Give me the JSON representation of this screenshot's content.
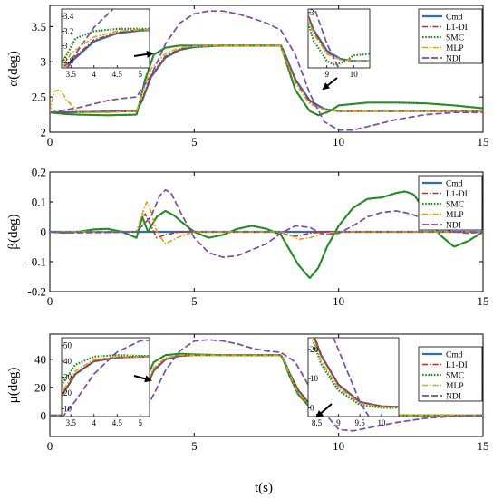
{
  "colors": {
    "Cmd": "#2a6fb5",
    "L1-DI": "#cc2a1a",
    "SMC": "#228b22",
    "MLP": "#d9a41a",
    "NDI": "#7d4aa8"
  },
  "chart_data": [
    {
      "type": "line",
      "ylabel": "α(deg)",
      "xlim": [
        0,
        15
      ],
      "ylim": [
        2,
        3.8
      ],
      "xticks": [
        0,
        5,
        10,
        15
      ],
      "yticks": [
        2,
        2.5,
        3,
        3.5
      ],
      "legend": [
        "Cmd",
        "L1-DI",
        "SMC",
        "MLP",
        "NDI"
      ],
      "legend_position": "top-right",
      "series": [
        {
          "name": "Cmd",
          "x": [
            0,
            3,
            3.2,
            3.5,
            4,
            4.5,
            5,
            6,
            7,
            8,
            8.1,
            8.5,
            9,
            9.5,
            10,
            11,
            15
          ],
          "y": [
            2.28,
            2.3,
            2.45,
            2.78,
            3.06,
            3.17,
            3.21,
            3.23,
            3.23,
            3.23,
            3.15,
            2.75,
            2.45,
            2.33,
            2.3,
            2.3,
            2.3
          ]
        },
        {
          "name": "L1-DI",
          "x": [
            0,
            3,
            3.2,
            3.5,
            4,
            4.5,
            5,
            6,
            7,
            8,
            8.1,
            8.5,
            9,
            9.5,
            10,
            11,
            15
          ],
          "y": [
            2.28,
            2.3,
            2.47,
            2.8,
            3.08,
            3.18,
            3.22,
            3.23,
            3.23,
            3.23,
            3.14,
            2.73,
            2.43,
            2.32,
            2.3,
            2.3,
            2.3
          ]
        },
        {
          "name": "SMC",
          "x": [
            0,
            0.5,
            1,
            2,
            3,
            3.1,
            3.3,
            3.6,
            4,
            4.5,
            5,
            6,
            8,
            8.1,
            8.5,
            9,
            9.3,
            9.7,
            10,
            11,
            12,
            13,
            14,
            15
          ],
          "y": [
            2.28,
            2.26,
            2.25,
            2.24,
            2.25,
            2.4,
            2.75,
            3.1,
            3.2,
            3.23,
            3.23,
            3.23,
            3.23,
            3.1,
            2.6,
            2.3,
            2.24,
            2.3,
            2.38,
            2.42,
            2.42,
            2.41,
            2.38,
            2.34
          ]
        },
        {
          "name": "MLP",
          "x": [
            0,
            0.15,
            0.35,
            0.6,
            1,
            2,
            3,
            3.2,
            3.5,
            4,
            4.5,
            5,
            6,
            8,
            8.1,
            8.5,
            9,
            9.5,
            10,
            11,
            15
          ],
          "y": [
            2.28,
            2.58,
            2.6,
            2.45,
            2.28,
            2.28,
            2.3,
            2.55,
            2.9,
            3.12,
            3.2,
            3.22,
            3.23,
            3.23,
            3.1,
            2.7,
            2.4,
            2.32,
            2.3,
            2.3,
            2.3
          ]
        },
        {
          "name": "NDI",
          "x": [
            0,
            1,
            2,
            2.5,
            3,
            3.5,
            4,
            4.5,
            5,
            5.5,
            6,
            6.5,
            7,
            7.5,
            8,
            8.5,
            9,
            9.5,
            10,
            10.5,
            11,
            12,
            13,
            14,
            15
          ],
          "y": [
            2.28,
            2.35,
            2.45,
            2.48,
            2.5,
            2.8,
            3.25,
            3.55,
            3.68,
            3.72,
            3.72,
            3.68,
            3.62,
            3.55,
            3.45,
            3.1,
            2.55,
            2.15,
            2.03,
            2.03,
            2.08,
            2.18,
            2.25,
            2.28,
            2.28
          ]
        }
      ],
      "insets": [
        {
          "xlim": [
            3.3,
            5.2
          ],
          "ylim": [
            2.7,
            3.5
          ],
          "xticks": [
            3.5,
            4,
            4.5,
            5
          ],
          "yticks": [
            2.8,
            3,
            3.2,
            3.4
          ],
          "xtick_labels": [
            "3.5",
            "4",
            "4.5",
            "5"
          ],
          "ytick_labels": [
            "2.8",
            "3",
            "3.2",
            "3.4"
          ]
        },
        {
          "xlim": [
            8.3,
            10.6
          ],
          "ylim": [
            2.2,
            3.05
          ],
          "xticks": [
            9,
            10
          ],
          "yticks": [
            3
          ],
          "xtick_labels": [
            "9",
            "10"
          ],
          "ytick_labels": [
            "3"
          ]
        }
      ]
    },
    {
      "type": "line",
      "ylabel": "β(deg)",
      "xlim": [
        0,
        15
      ],
      "ylim": [
        -0.2,
        0.2
      ],
      "xticks": [
        0,
        5,
        10,
        15
      ],
      "yticks": [
        -0.2,
        -0.1,
        0,
        0.1,
        0.2
      ],
      "legend": [
        "Cmd",
        "L1-DI",
        "SMC",
        "MLP",
        "NDI"
      ],
      "legend_position": "top-right",
      "series": [
        {
          "name": "Cmd",
          "x": [
            0,
            15
          ],
          "y": [
            0,
            0
          ]
        },
        {
          "name": "L1-DI",
          "x": [
            0,
            3,
            3.15,
            3.3,
            3.5,
            3.7,
            4,
            4.5,
            5,
            6,
            7,
            8,
            8.2,
            8.5,
            9,
            9.5,
            10,
            11,
            15
          ],
          "y": [
            0,
            0,
            0.04,
            0.06,
            0.02,
            -0.02,
            -0.01,
            0,
            0,
            0,
            0,
            0,
            -0.01,
            -0.015,
            -0.005,
            0,
            0,
            0,
            0
          ]
        },
        {
          "name": "SMC",
          "x": [
            0,
            0.5,
            1,
            1.5,
            2,
            2.5,
            3,
            3.2,
            3.4,
            3.7,
            4,
            4.3,
            4.6,
            5,
            5.5,
            6,
            6.5,
            7,
            7.5,
            8,
            8.3,
            8.6,
            9,
            9.3,
            9.6,
            10,
            10.5,
            11,
            11.5,
            12,
            12.3,
            12.6,
            13,
            13.5,
            14,
            14.5,
            15
          ],
          "y": [
            0,
            -0.003,
            0,
            0.008,
            0.01,
            0,
            -0.02,
            0.05,
            0.0,
            0.05,
            0.07,
            0.055,
            0.03,
            0.0,
            -0.02,
            -0.01,
            0.01,
            0.02,
            0.01,
            -0.01,
            -0.06,
            -0.11,
            -0.155,
            -0.12,
            -0.05,
            0.02,
            0.08,
            0.11,
            0.115,
            0.13,
            0.135,
            0.125,
            0.07,
            -0.01,
            -0.05,
            -0.03,
            0
          ]
        },
        {
          "name": "MLP",
          "x": [
            0,
            3,
            3.2,
            3.35,
            3.5,
            3.7,
            4,
            4.4,
            5,
            6,
            7,
            8,
            8.3,
            8.6,
            9,
            9.5,
            10,
            11,
            15
          ],
          "y": [
            0,
            0,
            0.06,
            0.1,
            0.07,
            0.0,
            -0.04,
            -0.02,
            0,
            0,
            0,
            0,
            -0.01,
            -0.025,
            -0.02,
            -0.005,
            0,
            0,
            0
          ]
        },
        {
          "name": "NDI",
          "x": [
            0,
            0.5,
            1,
            2,
            3,
            3.5,
            3.8,
            4,
            4.2,
            4.5,
            5,
            5.5,
            6,
            6.5,
            7,
            7.5,
            8,
            8.5,
            9,
            9.5,
            10,
            10.5,
            11,
            11.5,
            12,
            12.5,
            13,
            13.5,
            14,
            14.5,
            15
          ],
          "y": [
            0,
            -0.003,
            -0.003,
            -0.002,
            0.0,
            0.05,
            0.12,
            0.14,
            0.13,
            0.07,
            -0.02,
            -0.07,
            -0.085,
            -0.08,
            -0.06,
            -0.04,
            -0.005,
            0.02,
            0.015,
            -0.01,
            -0.005,
            0.02,
            0.05,
            0.065,
            0.07,
            0.06,
            0.04,
            0.015,
            0,
            -0.005,
            0
          ]
        }
      ]
    },
    {
      "type": "line",
      "ylabel": "μ(deg)",
      "xlabel": "t(s)",
      "xlim": [
        0,
        15
      ],
      "ylim": [
        -15,
        58
      ],
      "xticks": [
        0,
        5,
        10,
        15
      ],
      "yticks": [
        0,
        20,
        40
      ],
      "legend": [
        "Cmd",
        "L1-DI",
        "SMC",
        "MLP",
        "NDI"
      ],
      "legend_position": "right",
      "series": [
        {
          "name": "Cmd",
          "x": [
            0,
            3,
            3.1,
            3.3,
            3.6,
            4,
            4.5,
            5,
            6,
            8,
            8.1,
            8.3,
            8.6,
            9,
            9.5,
            10,
            11,
            15
          ],
          "y": [
            0,
            0,
            5,
            18,
            32,
            40,
            42.5,
            43,
            43,
            43,
            40,
            30,
            18,
            8,
            2,
            0.5,
            0,
            0
          ]
        },
        {
          "name": "L1-DI",
          "x": [
            0,
            3,
            3.1,
            3.3,
            3.6,
            4,
            4.5,
            5,
            6,
            8,
            8.1,
            8.3,
            8.6,
            9,
            9.5,
            10,
            11,
            15
          ],
          "y": [
            0,
            0,
            5,
            18,
            32,
            40,
            42.5,
            43,
            43,
            43,
            40,
            30,
            18,
            8,
            2,
            0.5,
            0,
            0
          ]
        },
        {
          "name": "SMC",
          "x": [
            0,
            3,
            3.1,
            3.3,
            3.6,
            4,
            4.5,
            5,
            6,
            8,
            8.1,
            8.3,
            8.6,
            9,
            9.5,
            10,
            11,
            15
          ],
          "y": [
            0,
            0,
            8,
            25,
            38,
            43,
            44,
            43.5,
            43,
            43,
            39,
            28,
            15,
            6,
            1,
            0,
            0,
            0
          ]
        },
        {
          "name": "MLP",
          "x": [
            0,
            3,
            3.1,
            3.3,
            3.6,
            4,
            4.5,
            5,
            6,
            8,
            8.1,
            8.3,
            8.6,
            9,
            9.5,
            10,
            11,
            15
          ],
          "y": [
            0,
            0,
            6,
            20,
            34,
            41,
            43,
            43,
            43,
            43,
            40,
            29,
            16,
            7,
            1.5,
            0.3,
            0,
            0
          ]
        },
        {
          "name": "NDI",
          "x": [
            0,
            3,
            3.3,
            3.6,
            4,
            4.5,
            5,
            5.5,
            6,
            6.5,
            7,
            7.5,
            8,
            8.5,
            9,
            9.5,
            10,
            10.5,
            11,
            12,
            13,
            14,
            15
          ],
          "y": [
            0,
            0,
            4,
            15,
            32,
            46,
            53,
            54,
            53,
            51,
            48,
            46,
            45,
            38,
            20,
            2,
            -10,
            -11,
            -9,
            -5,
            -2,
            -0.5,
            0
          ]
        }
      ],
      "insets": [
        {
          "xlim": [
            3.3,
            5.2
          ],
          "ylim": [
            5,
            55
          ],
          "xticks": [
            3.5,
            4,
            4.5,
            5
          ],
          "yticks": [
            10,
            20,
            30,
            40,
            50
          ],
          "xtick_labels": [
            "3.5",
            "4",
            "4.5",
            "5"
          ],
          "ytick_labels": [
            "10",
            "20",
            "30",
            "40",
            "50"
          ]
        },
        {
          "xlim": [
            8.3,
            10.4
          ],
          "ylim": [
            -3,
            24
          ],
          "xticks": [
            8.5,
            9,
            9.5,
            10
          ],
          "yticks": [
            0,
            10,
            20
          ],
          "xtick_labels": [
            "8.5",
            "9",
            "9.5",
            "10"
          ],
          "ytick_labels": [
            "0",
            "10",
            "20"
          ]
        }
      ]
    }
  ]
}
